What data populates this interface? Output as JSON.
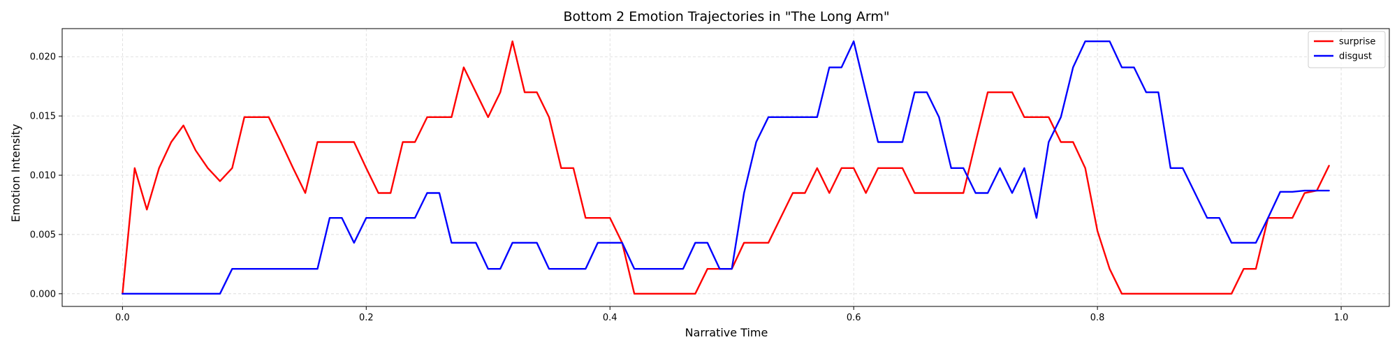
{
  "chart_data": {
    "type": "line",
    "title": "Bottom 2 Emotion Trajectories in \"The Long Arm\"",
    "xlabel": "Narrative Time",
    "ylabel": "Emotion Intensity",
    "xlim": [
      -0.0495,
      1.0395
    ],
    "ylim": [
      -0.00107,
      0.02237
    ],
    "xticks": [
      0.0,
      0.2,
      0.4,
      0.6,
      0.8,
      1.0
    ],
    "xtick_labels": [
      "0.0",
      "0.2",
      "0.4",
      "0.6",
      "0.8",
      "1.0"
    ],
    "yticks": [
      0.0,
      0.005,
      0.01,
      0.015,
      0.02
    ],
    "ytick_labels": [
      "0.000",
      "0.005",
      "0.010",
      "0.015",
      "0.020"
    ],
    "grid": true,
    "legend_position": "top-right",
    "x": [
      0.0,
      0.01,
      0.02,
      0.03,
      0.04,
      0.05,
      0.06,
      0.07,
      0.08,
      0.09,
      0.1,
      0.11,
      0.12,
      0.13,
      0.14,
      0.15,
      0.16,
      0.17,
      0.18,
      0.19,
      0.2,
      0.21,
      0.22,
      0.23,
      0.24,
      0.25,
      0.26,
      0.27,
      0.28,
      0.29,
      0.3,
      0.31,
      0.32,
      0.33,
      0.34,
      0.35,
      0.36,
      0.37,
      0.38,
      0.39,
      0.4,
      0.41,
      0.42,
      0.43,
      0.44,
      0.45,
      0.46,
      0.47,
      0.48,
      0.49,
      0.5,
      0.51,
      0.52,
      0.53,
      0.54,
      0.55,
      0.56,
      0.57,
      0.58,
      0.59,
      0.6,
      0.61,
      0.62,
      0.63,
      0.64,
      0.65,
      0.66,
      0.67,
      0.68,
      0.69,
      0.7,
      0.71,
      0.72,
      0.73,
      0.74,
      0.75,
      0.76,
      0.77,
      0.78,
      0.79,
      0.8,
      0.81,
      0.82,
      0.83,
      0.84,
      0.85,
      0.86,
      0.87,
      0.88,
      0.89,
      0.9,
      0.91,
      0.92,
      0.93,
      0.94,
      0.95,
      0.96,
      0.97,
      0.98,
      0.99
    ],
    "series": [
      {
        "name": "surprise",
        "color": "#ff0000",
        "values": [
          0.0,
          0.0106,
          0.0071,
          0.0106,
          0.0128,
          0.0142,
          0.0121,
          0.0106,
          0.0095,
          0.0106,
          0.0149,
          0.0149,
          0.0149,
          0.0128,
          0.0106,
          0.0085,
          0.0128,
          0.0128,
          0.0128,
          0.0128,
          0.0106,
          0.0085,
          0.0085,
          0.0128,
          0.0128,
          0.0149,
          0.0149,
          0.0149,
          0.0191,
          0.017,
          0.0149,
          0.017,
          0.0213,
          0.017,
          0.017,
          0.0149,
          0.0106,
          0.0106,
          0.0064,
          0.0064,
          0.0064,
          0.0043,
          0.0,
          0.0,
          0.0,
          0.0,
          0.0,
          0.0,
          0.0021,
          0.0021,
          0.0021,
          0.0043,
          0.0043,
          0.0043,
          0.0064,
          0.0085,
          0.0085,
          0.0106,
          0.0085,
          0.0106,
          0.0106,
          0.0085,
          0.0106,
          0.0106,
          0.0106,
          0.0085,
          0.0085,
          0.0085,
          0.0085,
          0.0085,
          0.0128,
          0.017,
          0.017,
          0.017,
          0.0149,
          0.0149,
          0.0149,
          0.0128,
          0.0128,
          0.0106,
          0.0053,
          0.0021,
          0.0,
          0.0,
          0.0,
          0.0,
          0.0,
          0.0,
          0.0,
          0.0,
          0.0,
          0.0,
          0.0021,
          0.0021,
          0.0064,
          0.0064,
          0.0064,
          0.0085,
          0.0087,
          0.0108
        ]
      },
      {
        "name": "disgust",
        "color": "#0000ff",
        "values": [
          0.0,
          0.0,
          0.0,
          0.0,
          0.0,
          0.0,
          0.0,
          0.0,
          0.0,
          0.0021,
          0.0021,
          0.0021,
          0.0021,
          0.0021,
          0.0021,
          0.0021,
          0.0021,
          0.0064,
          0.0064,
          0.0043,
          0.0064,
          0.0064,
          0.0064,
          0.0064,
          0.0064,
          0.0085,
          0.0085,
          0.0043,
          0.0043,
          0.0043,
          0.0021,
          0.0021,
          0.0043,
          0.0043,
          0.0043,
          0.0021,
          0.0021,
          0.0021,
          0.0021,
          0.0043,
          0.0043,
          0.0043,
          0.0021,
          0.0021,
          0.0021,
          0.0021,
          0.0021,
          0.0043,
          0.0043,
          0.0021,
          0.0021,
          0.0085,
          0.0128,
          0.0149,
          0.0149,
          0.0149,
          0.0149,
          0.0149,
          0.0191,
          0.0191,
          0.0213,
          0.017,
          0.0128,
          0.0128,
          0.0128,
          0.017,
          0.017,
          0.0149,
          0.0106,
          0.0106,
          0.0085,
          0.0085,
          0.0106,
          0.0085,
          0.0106,
          0.0064,
          0.0128,
          0.0149,
          0.0191,
          0.0213,
          0.0213,
          0.0213,
          0.0191,
          0.0191,
          0.017,
          0.017,
          0.0106,
          0.0106,
          0.0085,
          0.0064,
          0.0064,
          0.0043,
          0.0043,
          0.0043,
          0.0064,
          0.0086,
          0.0086,
          0.0087,
          0.0087,
          0.0087
        ]
      }
    ]
  }
}
